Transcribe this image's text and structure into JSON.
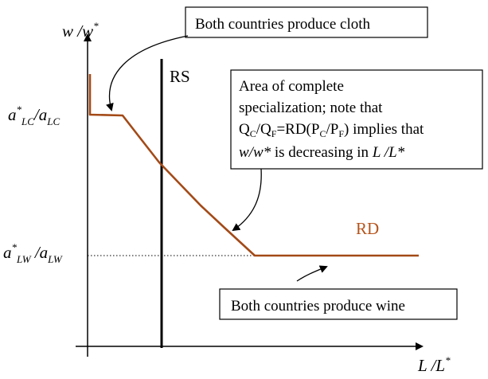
{
  "colors": {
    "curve": "#a34a17",
    "rd_label": "#b5541c",
    "ink": "#000000"
  },
  "axes": {
    "y_label": {
      "main": "w",
      "slash": " /",
      "main2": "w",
      "sup": "*"
    },
    "x_label": {
      "main": "L",
      "slash": " /",
      "main2": "L",
      "sup": "*"
    },
    "tick_high": {
      "a": "a",
      "a_sup": "*",
      "a_sub": "LC",
      "slash": "/",
      "b": "a",
      "b_sub": "LC"
    },
    "tick_low": {
      "a": "a",
      "a_sup": "*",
      "a_sub": "LW",
      "slash": " /",
      "b": "a",
      "b_sub": "LW"
    }
  },
  "curves": {
    "rs": "RS",
    "rd": "RD"
  },
  "callouts": {
    "cloth": "Both countries produce cloth",
    "wine": "Both countries produce wine",
    "specialization": {
      "line1": "Area of complete",
      "line2": "specialization; note that",
      "q": "Q",
      "q_c": "C",
      "q_slash": "/Q",
      "q_f": "F",
      "rd_open": "=RD(P",
      "p_c": "C",
      "p_slash": "/P",
      "p_f": "F",
      "implies": ") implies that",
      "w1": "w/w*",
      "mid": " is decreasing in ",
      "l1": "L /L*"
    }
  }
}
